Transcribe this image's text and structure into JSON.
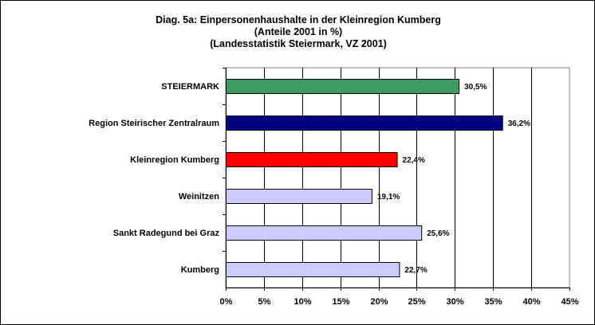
{
  "chart_data": {
    "type": "bar",
    "orientation": "horizontal",
    "title_lines": [
      "Diag. 5a: Einpersonenhaushalte  in der Kleinregion Kumberg",
      "(Anteile 2001 in %)",
      "(Landesstatistik  Steiermark,  VZ 2001)"
    ],
    "categories": [
      "STEIERMARK",
      "Region Steirischer Zentralraum",
      "Kleinregion Kumberg",
      "Weinitzen",
      "Sankt Radegund bei Graz",
      "Kumberg"
    ],
    "values": [
      30.5,
      36.2,
      22.4,
      19.1,
      25.6,
      22.7
    ],
    "value_labels": [
      "30,5%",
      "36,2%",
      "22,4%",
      "19,1%",
      "25,6%",
      "22,7%"
    ],
    "bar_colors": [
      "#3c9a63",
      "#000080",
      "#ff0000",
      "#ccccff",
      "#ccccff",
      "#ccccff"
    ],
    "xlim": [
      0,
      45
    ],
    "xticks": [
      "0%",
      "5%",
      "10%",
      "15%",
      "20%",
      "25%",
      "30%",
      "35%",
      "40%",
      "45%"
    ],
    "grid": "vertical",
    "legend": "none"
  }
}
